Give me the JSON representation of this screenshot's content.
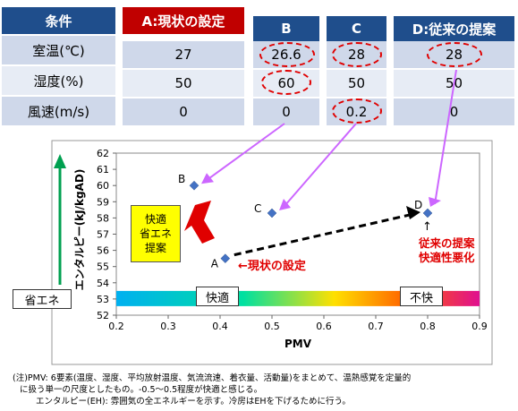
{
  "table": {
    "headers": [
      "条件",
      "A:現状の設定",
      "B",
      "C",
      "D:従来の提案"
    ],
    "rows": [
      {
        "label": "室温(℃)",
        "values": [
          "27",
          "26.6",
          "28",
          "28"
        ]
      },
      {
        "label": "湿度(%)",
        "values": [
          "50",
          "60",
          "50",
          "50"
        ]
      },
      {
        "label": "風速(m/s)",
        "values": [
          "0",
          "0",
          "0.2",
          "0"
        ]
      }
    ]
  },
  "chart_data": {
    "type": "scatter",
    "xlabel": "PMV",
    "ylabel": "エンタルピー(kJ/kgAD)",
    "xlim": [
      0.2,
      0.9
    ],
    "ylim": [
      52,
      62
    ],
    "x_ticks": [
      "0.2",
      "0.3",
      "0.4",
      "0.5",
      "0.6",
      "0.7",
      "0.8",
      "0.9"
    ],
    "y_ticks": [
      "52",
      "53",
      "54",
      "55",
      "56",
      "57",
      "58",
      "59",
      "60",
      "61",
      "62"
    ],
    "points": [
      {
        "label": "A",
        "x": 0.41,
        "y": 55.5
      },
      {
        "label": "B",
        "x": 0.35,
        "y": 60.0
      },
      {
        "label": "C",
        "x": 0.5,
        "y": 58.3
      },
      {
        "label": "D",
        "x": 0.8,
        "y": 58.3
      }
    ],
    "comfort_bar": {
      "left_label": "快適",
      "right_label": "不快",
      "y": 53
    },
    "annotations": {
      "save_energy": "省エネ",
      "proposal_box": [
        "快適",
        "省エネ",
        "提案"
      ],
      "current_setting": "←現状の設定",
      "d_note": [
        "従来の提案",
        "快適性悪化"
      ],
      "d_arrow": "↑"
    }
  },
  "notes": [
    "(注)PMV:  6要素(温度、湿度、平均放射温度、気流流速、着衣量、活動量)をまとめて、温熱感覚を定量的",
    "に扱う単一の尺度としたもの。-0.5～0.5程度が快適と感じる。",
    "エンタルピー(EH):  雰囲気の全エネルギーを示す。冷房はEHを下げるために行う。"
  ],
  "colors": {
    "header_blue": "#1f4e8c",
    "header_red": "#c00000",
    "marker": "#4472c4",
    "callout": "#cc66ff",
    "green_axis": "#00a050",
    "red_arrow": "#e00000"
  }
}
